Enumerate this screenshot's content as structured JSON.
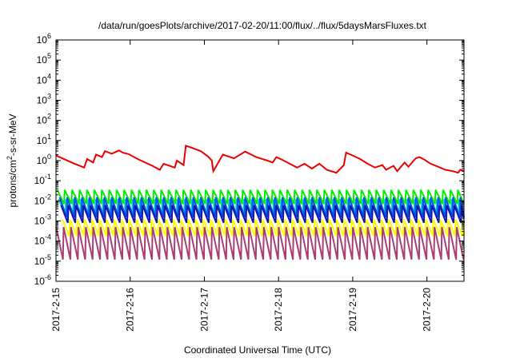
{
  "chart_data": {
    "type": "line",
    "title": "/data/run/goesPlots/archive/2017-02-20/11:00/flux/../flux/5daysMarsFluxes.txt",
    "xlabel": "Coordinated Universal Time (UTC)",
    "ylabel_prefix": "protons/cm",
    "ylabel_sup": "2",
    "ylabel_suffix": "-s-sr-MeV",
    "y_scale": "log",
    "ylim": [
      1e-06,
      1000000.0
    ],
    "xlim": [
      0,
      5.5
    ],
    "x_ticks": [
      {
        "value": 0,
        "label": "2017-2-15"
      },
      {
        "value": 1,
        "label": "2017-2-16"
      },
      {
        "value": 2,
        "label": "2017-2-17"
      },
      {
        "value": 3,
        "label": "2017-2-18"
      },
      {
        "value": 4,
        "label": "2017-2-19"
      },
      {
        "value": 5,
        "label": "2017-2-20"
      }
    ],
    "y_ticks": [
      {
        "value": -6,
        "base": "10",
        "exp": "-6"
      },
      {
        "value": -5,
        "base": "10",
        "exp": "-5"
      },
      {
        "value": -4,
        "base": "10",
        "exp": "-4"
      },
      {
        "value": -3,
        "base": "10",
        "exp": "-3"
      },
      {
        "value": -2,
        "base": "10",
        "exp": "-2"
      },
      {
        "value": -1,
        "base": "10",
        "exp": "-1"
      },
      {
        "value": 0,
        "base": "10",
        "exp": "0"
      },
      {
        "value": 1,
        "base": "10",
        "exp": "1"
      },
      {
        "value": 2,
        "base": "10",
        "exp": "2"
      },
      {
        "value": 3,
        "base": "10",
        "exp": "3"
      },
      {
        "value": 4,
        "base": "10",
        "exp": "4"
      },
      {
        "value": 5,
        "base": "10",
        "exp": "5"
      },
      {
        "value": 6,
        "base": "10",
        "exp": "6"
      }
    ],
    "grid": false,
    "legend": "none",
    "series": [
      {
        "color": "#ee0000",
        "x": [
          0.0,
          0.25,
          0.38,
          0.42,
          0.5,
          0.54,
          0.62,
          0.66,
          0.75,
          0.85,
          0.9,
          0.98,
          1.1,
          1.3,
          1.4,
          1.45,
          1.6,
          1.63,
          1.72,
          1.75,
          1.82,
          1.95,
          2.05,
          2.1,
          2.12,
          2.25,
          2.4,
          2.55,
          2.7,
          2.85,
          2.92,
          2.97,
          3.05,
          3.15,
          3.25,
          3.35,
          3.45,
          3.55,
          3.65,
          3.78,
          3.88,
          3.91,
          4.0,
          4.1,
          4.2,
          4.3,
          4.4,
          4.45,
          4.55,
          4.6,
          4.7,
          4.75,
          4.85,
          4.9,
          4.97,
          5.05,
          5.15,
          5.25,
          5.35,
          5.42,
          5.45,
          5.5
        ],
        "y": [
          1.8,
          0.7,
          0.45,
          1.2,
          0.8,
          2.0,
          1.5,
          3.0,
          2.2,
          3.2,
          2.5,
          2.1,
          1.2,
          0.55,
          0.35,
          0.7,
          0.45,
          1.0,
          0.6,
          5.5,
          4.5,
          3.0,
          1.6,
          1.0,
          0.3,
          2.0,
          1.3,
          2.8,
          1.5,
          1.0,
          0.8,
          1.5,
          1.1,
          0.7,
          0.45,
          0.7,
          0.4,
          0.7,
          0.35,
          0.25,
          0.6,
          2.5,
          1.8,
          1.2,
          0.7,
          0.45,
          0.6,
          0.35,
          0.55,
          0.3,
          0.8,
          0.5,
          1.3,
          1.5,
          1.1,
          0.7,
          0.5,
          0.35,
          0.3,
          0.25,
          0.35,
          0.3
        ]
      },
      {
        "color": "#00ee00",
        "period": 0.1,
        "low": 0.007,
        "high": 0.035
      },
      {
        "color": "#00cccc",
        "period": 0.1,
        "low": 0.002,
        "high": 0.012
      },
      {
        "color": "#0055ee",
        "period": 0.1,
        "low": 0.0015,
        "high": 0.015
      },
      {
        "color": "#1515aa",
        "period": 0.1,
        "low": 0.0008,
        "high": 0.006
      },
      {
        "color": "#ffff00",
        "period": 0.1,
        "low": 0.00018,
        "high": 0.0012
      },
      {
        "color": "#a83e74",
        "period": 0.1,
        "low": 1.2e-05,
        "high": 0.0005
      }
    ]
  }
}
